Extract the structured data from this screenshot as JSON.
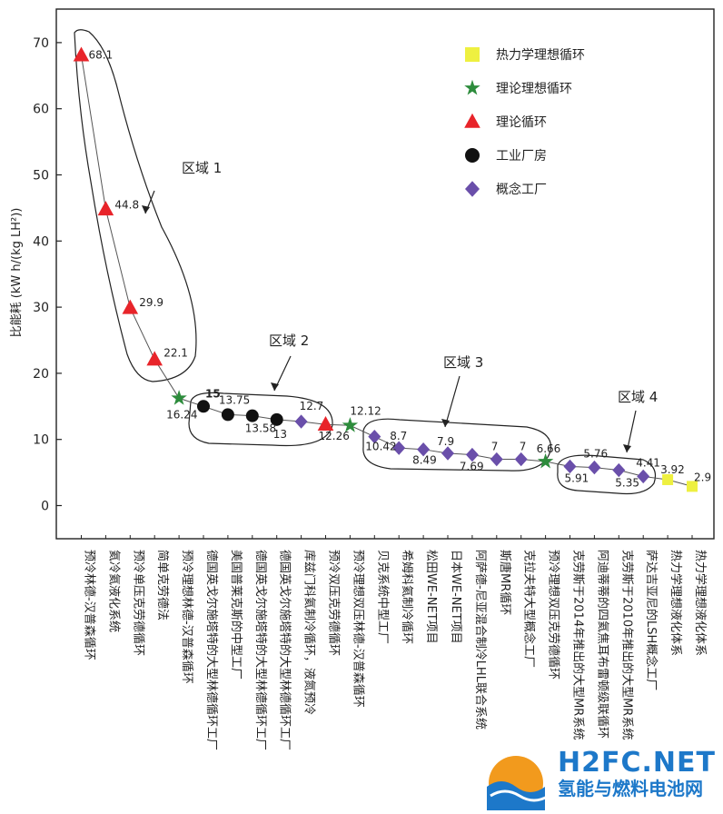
{
  "chart_data": {
    "type": "scatter",
    "ylabel": "比能耗 (kW h/(kg LH²))",
    "ylim": [
      -5,
      73
    ],
    "yticks": [
      0,
      10,
      20,
      30,
      40,
      50,
      60,
      70
    ],
    "grid": false,
    "legend_position": "top-right",
    "categories": [
      "预冷林德-汉普森循环",
      "氦冷氦液化系统",
      "预冷单压克劳德循环",
      "简单克劳德法",
      "预冷理想林德-汉普森循环",
      "德国英戈尔施塔特的大型林德循环工厂",
      "美国普莱克斯的中型工厂",
      "德国英戈尔施塔特的大型林德循环工厂",
      "德国英戈尔施塔特的大型林德循环工厂",
      "库兹门科氦制冷循环，液氮预冷",
      "预冷双压克劳德循环",
      "预冷理想双压林德-汉普森循环",
      "贝克系统中型工厂",
      "希姆科氦制冷循环",
      "松田WE-NET项目",
      "日本WE-NET项目",
      "阿萨德-尼亚混合制冷LHL联合系统",
      "斯唐MR循环",
      "克拉夫特大型概念工厂",
      "预冷理想双压克劳德循环",
      "克劳斯于2014年推出的大型MR系统",
      "阿迪蒂蒂的四氦焦耳布雷顿级联循环",
      "克劳斯于2010年推出的大型MR系统",
      "萨达吉亚尼的LSH概念工厂",
      "热力学理想液化体系",
      "热力学理想液化体系"
    ],
    "series": [
      {
        "name": "热力学理想循环",
        "marker": "square",
        "color": "#eef040",
        "points": [
          {
            "x": 25,
            "y": 3.92,
            "label": "3.92"
          },
          {
            "x": 26,
            "y": 2.9,
            "label": "2.9"
          }
        ]
      },
      {
        "name": "理论理想循环",
        "marker": "star",
        "color": "#2d8c3c",
        "points": [
          {
            "x": 5,
            "y": 16.24,
            "label": "16.24"
          },
          {
            "x": 12,
            "y": 12.12,
            "label": "12.12"
          },
          {
            "x": 20,
            "y": 6.66,
            "label": "6.66"
          }
        ]
      },
      {
        "name": "理论循环",
        "marker": "triangle",
        "color": "#e8242a",
        "points": [
          {
            "x": 1,
            "y": 68.1,
            "label": "68.1"
          },
          {
            "x": 2,
            "y": 44.8,
            "label": "44.8"
          },
          {
            "x": 3,
            "y": 29.9,
            "label": "29.9"
          },
          {
            "x": 4,
            "y": 22.1,
            "label": "22.1"
          },
          {
            "x": 11,
            "y": 12.26,
            "label": "12.26"
          }
        ]
      },
      {
        "name": "工业厂房",
        "marker": "circle",
        "color": "#111111",
        "points": [
          {
            "x": 6,
            "y": 15,
            "label": "15"
          },
          {
            "x": 7,
            "y": 13.75,
            "label": "13.75"
          },
          {
            "x": 8,
            "y": 13.58,
            "label": "13.58"
          },
          {
            "x": 9,
            "y": 13,
            "label": "13"
          }
        ]
      },
      {
        "name": "概念工厂",
        "marker": "diamond",
        "color": "#6a4faa",
        "points": [
          {
            "x": 10,
            "y": 12.7,
            "label": "12.7"
          },
          {
            "x": 13,
            "y": 10.42,
            "label": "10.42"
          },
          {
            "x": 14,
            "y": 8.7,
            "label": "8.7"
          },
          {
            "x": 15,
            "y": 8.49,
            "label": "8.49"
          },
          {
            "x": 16,
            "y": 7.9,
            "label": "7.9"
          },
          {
            "x": 17,
            "y": 7.69,
            "label": "7.69"
          },
          {
            "x": 18,
            "y": 7,
            "label": "7"
          },
          {
            "x": 19,
            "y": 7,
            "label": "7"
          },
          {
            "x": 21,
            "y": 5.91,
            "label": "5.91"
          },
          {
            "x": 22,
            "y": 5.76,
            "label": "5.76"
          },
          {
            "x": 23,
            "y": 5.35,
            "label": "5.35"
          },
          {
            "x": 24,
            "y": 4.41,
            "label": "4.41"
          }
        ]
      }
    ],
    "annotations": [
      "区域 1",
      "区域 2",
      "区域 3",
      "区域 4"
    ]
  },
  "watermark": {
    "title": "H2FC.NET",
    "subtitle": "氢能与燃料电池网"
  }
}
